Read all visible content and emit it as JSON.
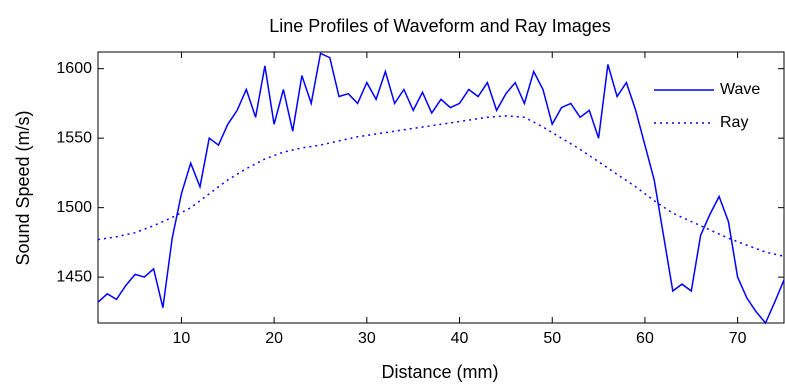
{
  "chart_data": {
    "type": "line",
    "title": "Line Profiles of Waveform and Ray Images",
    "x_label": "Distance (mm)",
    "y_label": "Sound Speed (m/s)",
    "xlim": [
      1,
      75
    ],
    "ylim": [
      1417,
      1612
    ],
    "xticks": [
      10,
      20,
      30,
      40,
      50,
      60,
      70
    ],
    "yticks": [
      1450,
      1500,
      1550,
      1600
    ],
    "grid": false,
    "legend": "upper right",
    "series": [
      {
        "name": "Wave",
        "color": "#0000ff",
        "style": "solid",
        "x": [
          1,
          2,
          3,
          4,
          5,
          6,
          7,
          8,
          9,
          10,
          11,
          12,
          13,
          14,
          15,
          16,
          17,
          18,
          19,
          20,
          21,
          22,
          23,
          24,
          25,
          26,
          27,
          28,
          29,
          30,
          31,
          32,
          33,
          34,
          35,
          36,
          37,
          38,
          39,
          40,
          41,
          42,
          43,
          44,
          45,
          46,
          47,
          48,
          49,
          50,
          51,
          52,
          53,
          54,
          55,
          56,
          57,
          58,
          59,
          60,
          61,
          62,
          63,
          64,
          65,
          66,
          67,
          68,
          69,
          70,
          71,
          72,
          73,
          74,
          75
        ],
        "values": [
          1432,
          1438,
          1434,
          1444,
          1452,
          1450,
          1456,
          1428,
          1478,
          1510,
          1532,
          1515,
          1550,
          1545,
          1560,
          1570,
          1585,
          1565,
          1602,
          1560,
          1585,
          1555,
          1595,
          1575,
          1611,
          1608,
          1580,
          1582,
          1575,
          1590,
          1578,
          1598,
          1575,
          1585,
          1570,
          1583,
          1568,
          1578,
          1572,
          1575,
          1585,
          1580,
          1590,
          1570,
          1582,
          1590,
          1575,
          1598,
          1585,
          1560,
          1572,
          1575,
          1565,
          1570,
          1550,
          1603,
          1580,
          1590,
          1570,
          1545,
          1520,
          1480,
          1440,
          1445,
          1440,
          1480,
          1495,
          1508,
          1490,
          1450,
          1435,
          1425,
          1417,
          1432,
          1448
        ]
      },
      {
        "name": "Ray",
        "color": "#0000ff",
        "style": "dotted",
        "x": [
          1,
          3,
          5,
          7,
          9,
          11,
          13,
          15,
          17,
          19,
          21,
          23,
          25,
          27,
          29,
          31,
          33,
          35,
          37,
          39,
          41,
          43,
          45,
          47,
          49,
          51,
          53,
          55,
          57,
          59,
          61,
          63,
          65,
          67,
          69,
          71,
          73,
          75
        ],
        "values": [
          1477,
          1479,
          1482,
          1487,
          1493,
          1500,
          1510,
          1520,
          1528,
          1535,
          1540,
          1543,
          1545,
          1548,
          1551,
          1553,
          1555,
          1557,
          1559,
          1561,
          1563,
          1565,
          1566,
          1565,
          1558,
          1550,
          1542,
          1533,
          1524,
          1515,
          1505,
          1496,
          1490,
          1484,
          1478,
          1473,
          1468,
          1465
        ]
      }
    ]
  }
}
